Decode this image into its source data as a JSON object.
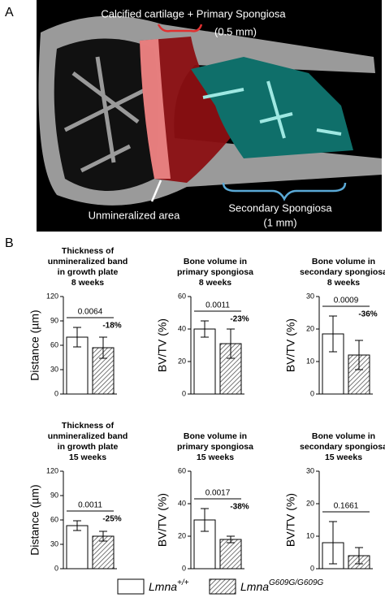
{
  "panel_labels": [
    "A",
    "B"
  ],
  "image_panel": {
    "labels": [
      "Calcified cartilage + Primary Spongiosa",
      "(0.5 mm)",
      "Unmineralized area",
      "Secondary Spongiosa",
      "(1 mm)"
    ]
  },
  "legend": [
    {
      "name": "Lmna",
      "sup": "+/+",
      "fill": "white"
    },
    {
      "name": "Lmna",
      "sup": "G609G/G609G",
      "fill": "hatch"
    }
  ],
  "chart_data": [
    {
      "type": "bar",
      "title": [
        "Thickness of",
        "unmineralized band",
        "in growth plate",
        "8 weeks"
      ],
      "y_label": "Distance (µm)",
      "ylim": [
        0,
        120
      ],
      "yticks": [
        0,
        30,
        60,
        90,
        120
      ],
      "p_value": "0.0064",
      "change": "-18%",
      "series": [
        {
          "fill": "white",
          "values": [
            70
          ],
          "errors": [
            12
          ]
        },
        {
          "fill": "hatch",
          "values": [
            57
          ],
          "errors": [
            13
          ]
        }
      ]
    },
    {
      "type": "bar",
      "title": [
        "Bone volume in",
        "primary spongiosa",
        "8 weeks"
      ],
      "y_label": "BV/TV (%)",
      "ylim": [
        0,
        60
      ],
      "yticks": [
        0,
        20,
        40,
        60
      ],
      "p_value": "0.0011",
      "change": "-23%",
      "series": [
        {
          "fill": "white",
          "values": [
            40
          ],
          "errors": [
            5
          ]
        },
        {
          "fill": "hatch",
          "values": [
            31
          ],
          "errors": [
            9
          ]
        }
      ]
    },
    {
      "type": "bar",
      "title": [
        "Bone volume in",
        "secondary spongiosa",
        "8 weeks"
      ],
      "y_label": "BV/TV (%)",
      "ylim": [
        0,
        30
      ],
      "yticks": [
        0,
        10,
        20,
        30
      ],
      "p_value": "0.0009",
      "change": "-36%",
      "series": [
        {
          "fill": "white",
          "values": [
            18.5
          ],
          "errors": [
            5.5
          ]
        },
        {
          "fill": "hatch",
          "values": [
            12
          ],
          "errors": [
            4.5
          ]
        }
      ]
    },
    {
      "type": "bar",
      "title": [
        "Thickness of",
        "unmineralized band",
        "in growth plate",
        "15 weeks"
      ],
      "y_label": "Distance (µm)",
      "ylim": [
        0,
        120
      ],
      "yticks": [
        0,
        30,
        60,
        90,
        120
      ],
      "p_value": "0.0011",
      "change": "-25%",
      "series": [
        {
          "fill": "white",
          "values": [
            53
          ],
          "errors": [
            6
          ]
        },
        {
          "fill": "hatch",
          "values": [
            40
          ],
          "errors": [
            6
          ]
        }
      ]
    },
    {
      "type": "bar",
      "title": [
        "Bone volume in",
        "primary spongiosa",
        "15 weeks"
      ],
      "y_label": "BV/TV (%)",
      "ylim": [
        0,
        60
      ],
      "yticks": [
        0,
        20,
        40,
        60
      ],
      "p_value": "0.0017",
      "change": "-38%",
      "series": [
        {
          "fill": "white",
          "values": [
            30
          ],
          "errors": [
            7
          ]
        },
        {
          "fill": "hatch",
          "values": [
            18
          ],
          "errors": [
            2
          ]
        }
      ]
    },
    {
      "type": "bar",
      "title": [
        "Bone volume in",
        "secondary spongiosa",
        "15 weeks"
      ],
      "y_label": "BV/TV (%)",
      "ylim": [
        0,
        30
      ],
      "yticks": [
        0,
        10,
        20,
        30
      ],
      "p_value": "0.1661",
      "series": [
        {
          "fill": "white",
          "values": [
            8
          ],
          "errors": [
            6.5
          ]
        },
        {
          "fill": "hatch",
          "values": [
            4
          ],
          "errors": [
            2.5
          ]
        }
      ]
    }
  ]
}
